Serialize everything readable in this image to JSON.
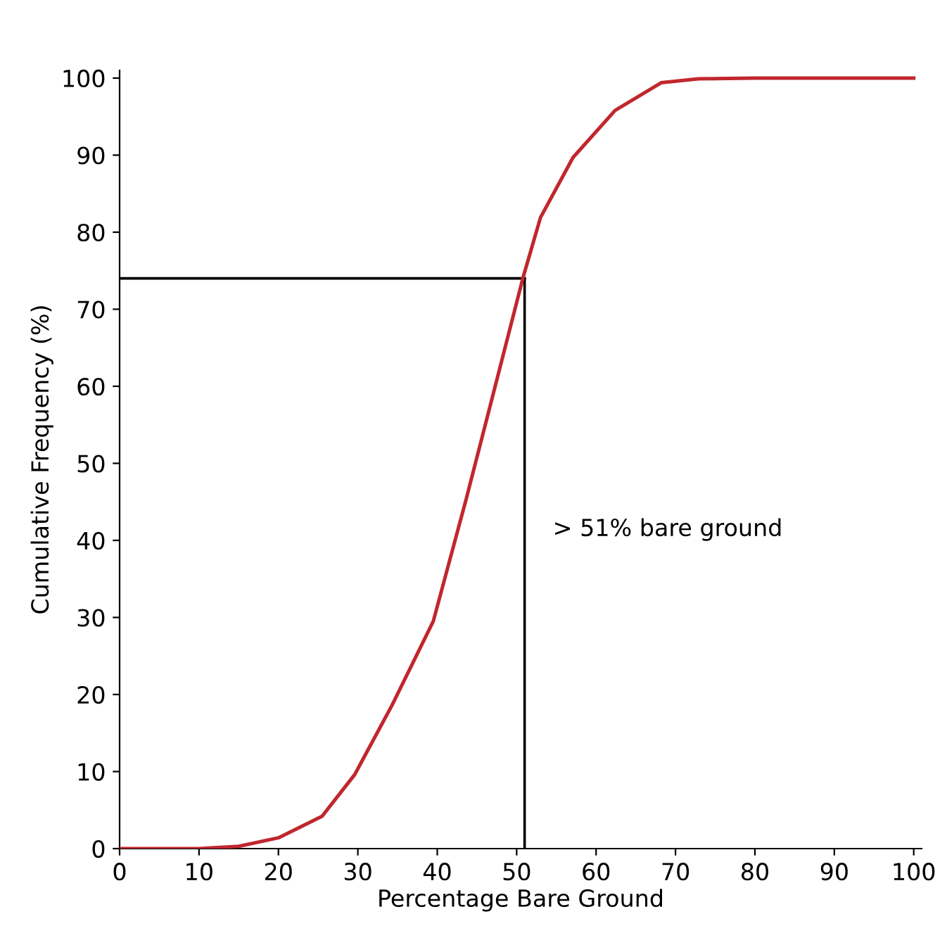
{
  "chart_data": {
    "type": "line",
    "xlabel": "Percentage Bare Ground",
    "ylabel": "Cumulative Frequency (%)",
    "series": [
      {
        "color": "#c0272d",
        "x": [
          0,
          10,
          15,
          20,
          25.5,
          29.6,
          34.3,
          39.5,
          43.6,
          46,
          50.8,
          53,
          57.1,
          62.4,
          68.2,
          72.9,
          80,
          90,
          100
        ],
        "values": [
          0,
          0,
          0.3,
          1.4,
          4.2,
          9.6,
          18.6,
          29.5,
          45.2,
          54.8,
          74.1,
          81.9,
          89.7,
          95.8,
          99.4,
          99.9,
          100,
          100,
          100
        ]
      }
    ],
    "xlim": [
      0,
      101
    ],
    "ylim": [
      0,
      101
    ],
    "xticks": [
      0,
      10,
      20,
      30,
      40,
      50,
      60,
      70,
      80,
      90,
      100
    ],
    "yticks": [
      0,
      10,
      20,
      30,
      40,
      50,
      60,
      70,
      80,
      90,
      100
    ],
    "ref_lines": [
      {
        "axis": "x",
        "value": 51,
        "color": "#000000"
      },
      {
        "axis": "y",
        "value": 74,
        "color": "#000000"
      }
    ],
    "annotations": [
      "> 51% bare ground"
    ],
    "grid": false,
    "legend": false
  }
}
